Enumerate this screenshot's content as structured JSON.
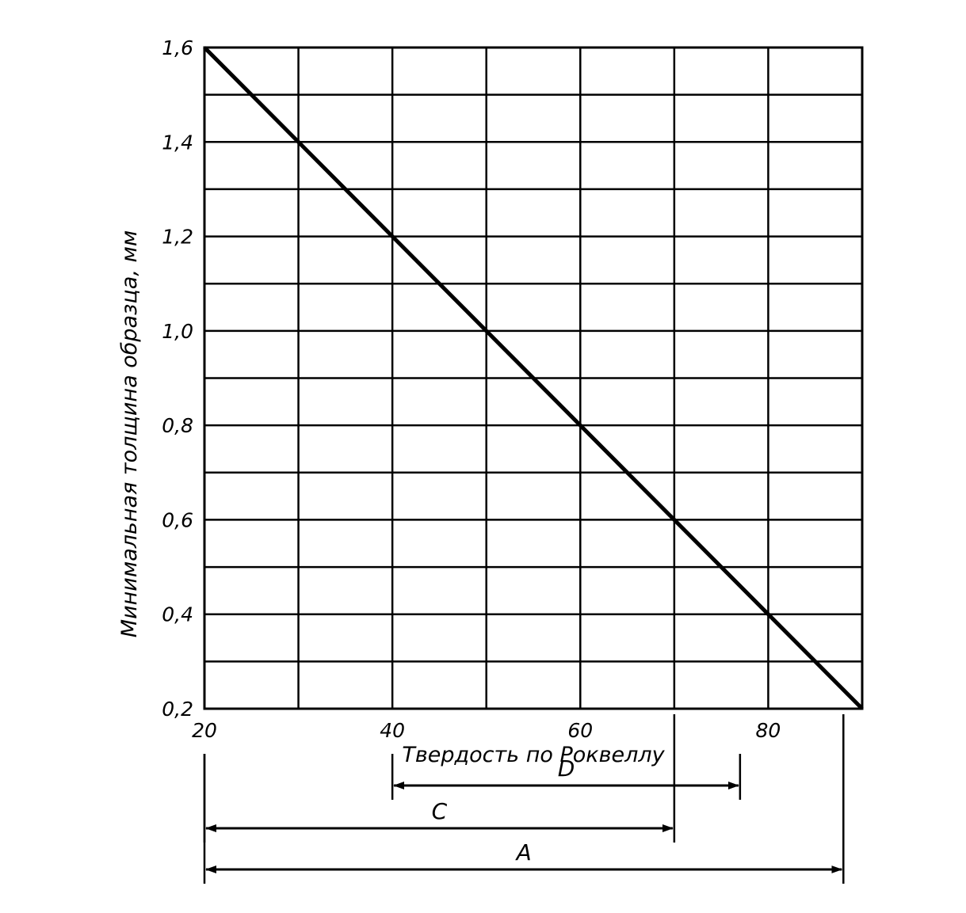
{
  "chart_data": {
    "type": "line",
    "title": "",
    "xlabel": "Твердость по Роквеллу",
    "ylabel": "Минимальная толщина образца, мм",
    "xlim": [
      20,
      90
    ],
    "ylim": [
      0.2,
      1.6
    ],
    "x_ticks": [
      20,
      40,
      60,
      80
    ],
    "x_tick_labels": [
      "20",
      "40",
      "60",
      "80"
    ],
    "y_ticks": [
      0.2,
      0.4,
      0.6,
      0.8,
      1.0,
      1.2,
      1.4,
      1.6
    ],
    "y_tick_labels": [
      "0,2",
      "0,4",
      "0,6",
      "0,8",
      "1,0",
      "1,2",
      "1,4",
      "1,6"
    ],
    "grid": true,
    "series": [
      {
        "x": [
          20,
          90
        ],
        "y": [
          1.6,
          0.2
        ]
      }
    ],
    "ranges": [
      {
        "label": "D",
        "from": 40,
        "to": 77
      },
      {
        "label": "C",
        "from": 20,
        "to": 70
      },
      {
        "label": "A",
        "from": 20,
        "to": 88
      }
    ]
  }
}
